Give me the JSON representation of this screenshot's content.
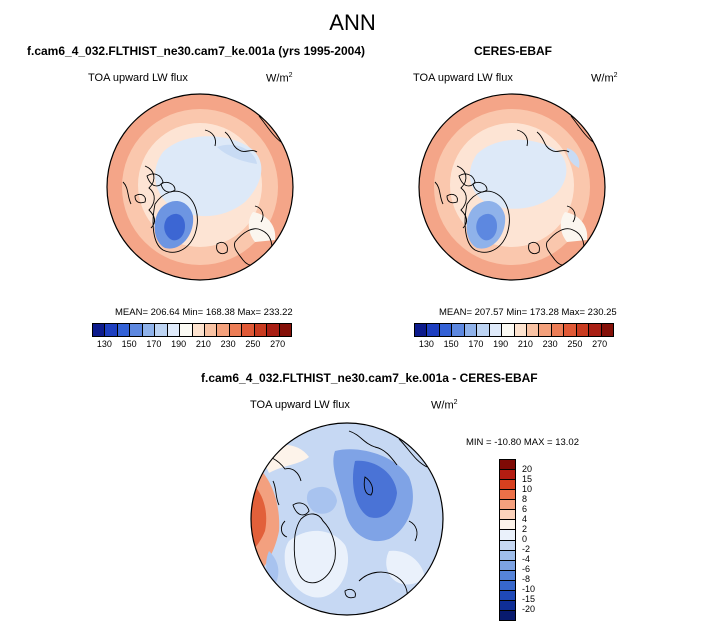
{
  "main_title": "ANN",
  "panels": [
    {
      "title": "f.cam6_4_032.FLTHIST_ne30.cam7_ke.001a (yrs 1995-2004)",
      "variable": "TOA upward LW flux",
      "units_base": "W/m",
      "units_exp": "2",
      "stats": "MEAN= 206.64   Min= 168.38   Max= 233.22"
    },
    {
      "title": "CERES-EBAF",
      "variable": "TOA upward LW flux",
      "units_base": "W/m",
      "units_exp": "2",
      "stats": "MEAN= 207.57   Min= 173.28   Max= 230.25"
    },
    {
      "title": "f.cam6_4_032.FLTHIST_ne30.cam7_ke.001a - CERES-EBAF",
      "variable": "TOA upward LW flux",
      "units_base": "W/m",
      "units_exp": "2",
      "stats": "MIN = -10.80  MAX =  13.02"
    }
  ],
  "colorbar_abs": {
    "colors": [
      "#0d1b8c",
      "#1e3fc0",
      "#3462d6",
      "#5d88e0",
      "#8fb2ea",
      "#bcd3f2",
      "#dfeafa",
      "#fbfaf4",
      "#fde3cf",
      "#f9c3a4",
      "#f4a17c",
      "#ec7d56",
      "#e05936",
      "#c93b20",
      "#a91f14",
      "#841008"
    ],
    "ticks": [
      "130",
      "150",
      "170",
      "190",
      "210",
      "230",
      "250",
      "270"
    ]
  },
  "colorbar_diff": {
    "colors": [
      "#7f0a05",
      "#b41d12",
      "#d7401f",
      "#ec7048",
      "#f5a07e",
      "#fcd2bb",
      "#fdf3ea",
      "#eaf1fb",
      "#c6d8f3",
      "#9fbeeb",
      "#7ca2e3",
      "#5684d9",
      "#3767cc",
      "#1f49b8",
      "#0f2e96",
      "#081a6e"
    ],
    "ticks": [
      "20",
      "15",
      "10",
      "8",
      "6",
      "4",
      "2",
      "0",
      "-2",
      "-4",
      "-6",
      "-8",
      "-10",
      "-15",
      "-20"
    ]
  },
  "map_colors": {
    "ocean_warm_1": "#f4a588",
    "ocean_warm_2": "#fac7ad",
    "ocean_warm_3": "#fde4d4",
    "neutral": "#fbf6ef",
    "ice_light": "#dde9f8",
    "ice_mid": "#b5cdf0",
    "greenland": "#6d95e2",
    "greenland_core": "#3c66d3",
    "diff_blue_1": "#a8c3ef",
    "diff_blue_2": "#7fa3e6",
    "diff_blue_3": "#4a73d6",
    "diff_red_1": "#f3a07f",
    "diff_red_2": "#e2603a"
  }
}
